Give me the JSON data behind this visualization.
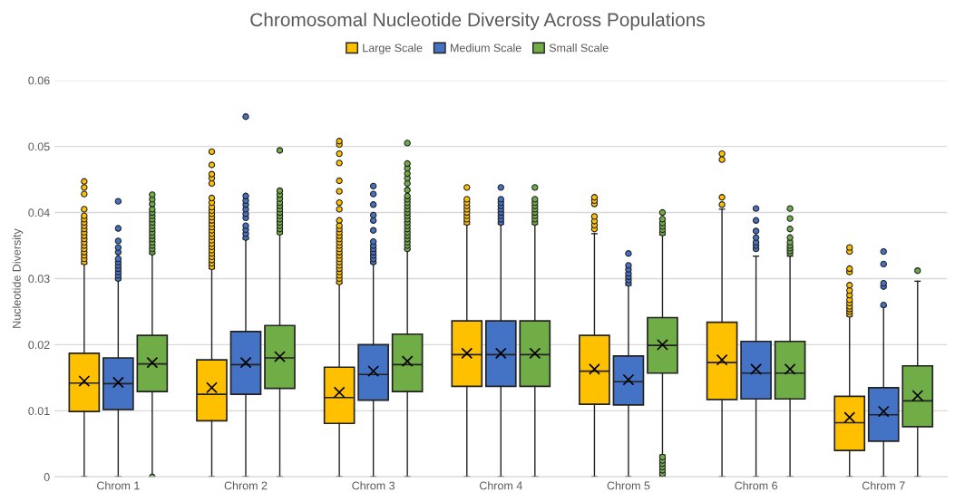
{
  "chart_data": {
    "type": "box",
    "title": "Chromosomal Nucleotide Diversity Across Populations",
    "ylabel": "Nucleotide Diversity",
    "categories": [
      "Chrom 1",
      "Chrom 2",
      "Chrom 3",
      "Chrom 4",
      "Chrom 5",
      "Chrom 6",
      "Chrom 7"
    ],
    "ylim": [
      0,
      0.06
    ],
    "yticks": [
      0,
      0.01,
      0.02,
      0.03,
      0.04,
      0.05,
      0.06
    ],
    "grid": "y",
    "legend": "top",
    "series": [
      {
        "name": "Large Scale",
        "color": "#ffc000",
        "boxes": [
          {
            "low": 0,
            "q1": 0.0099,
            "median": 0.0142,
            "q3": 0.0187,
            "high": 0.0322,
            "mean": 0.0145,
            "outliers": [
              0.0325,
              0.033,
              0.0335,
              0.034,
              0.0345,
              0.035,
              0.0355,
              0.036,
              0.0365,
              0.037,
              0.0375,
              0.038,
              0.0385,
              0.039,
              0.0395,
              0.0405,
              0.0428,
              0.0438,
              0.0447
            ]
          },
          {
            "low": 0,
            "q1": 0.0085,
            "median": 0.0125,
            "q3": 0.0177,
            "high": 0.0315,
            "mean": 0.0135,
            "outliers": [
              0.0318,
              0.0323,
              0.0328,
              0.0333,
              0.0338,
              0.0343,
              0.0348,
              0.0353,
              0.0358,
              0.0363,
              0.0368,
              0.0373,
              0.0378,
              0.0383,
              0.0388,
              0.0393,
              0.0398,
              0.0403,
              0.0408,
              0.0415,
              0.0422,
              0.0444,
              0.0452,
              0.0458,
              0.0472,
              0.0492
            ]
          },
          {
            "low": 0,
            "q1": 0.0081,
            "median": 0.012,
            "q3": 0.0166,
            "high": 0.0293,
            "mean": 0.0128,
            "outliers": [
              0.0295,
              0.03,
              0.0305,
              0.031,
              0.0315,
              0.032,
              0.0325,
              0.033,
              0.0335,
              0.034,
              0.0345,
              0.035,
              0.0355,
              0.036,
              0.0365,
              0.037,
              0.0375,
              0.038,
              0.0388,
              0.0405,
              0.0415,
              0.0432,
              0.0448,
              0.0475,
              0.0489,
              0.0503,
              0.0508
            ]
          },
          {
            "low": 0,
            "q1": 0.0137,
            "median": 0.0185,
            "q3": 0.0236,
            "high": 0.0382,
            "mean": 0.0187,
            "outliers": [
              0.0385,
              0.039,
              0.0395,
              0.04,
              0.0405,
              0.041,
              0.0415,
              0.042,
              0.0438
            ]
          },
          {
            "low": 0,
            "q1": 0.011,
            "median": 0.016,
            "q3": 0.0214,
            "high": 0.0368,
            "mean": 0.0163,
            "outliers": [
              0.0375,
              0.0381,
              0.0387,
              0.0394,
              0.0413,
              0.0418,
              0.0423
            ]
          },
          {
            "low": 0,
            "q1": 0.0117,
            "median": 0.0173,
            "q3": 0.0234,
            "high": 0.0405,
            "mean": 0.0177,
            "outliers": [
              0.0412,
              0.0423,
              0.048,
              0.0489
            ]
          },
          {
            "low": 0,
            "q1": 0.004,
            "median": 0.0082,
            "q3": 0.0122,
            "high": 0.0243,
            "mean": 0.009,
            "outliers": [
              0.0246,
              0.025,
              0.0254,
              0.0258,
              0.0263,
              0.0268,
              0.0275,
              0.0282,
              0.029,
              0.031,
              0.0315,
              0.0341,
              0.0347
            ]
          }
        ]
      },
      {
        "name": "Medium Scale",
        "color": "#4472c4",
        "boxes": [
          {
            "low": 0,
            "q1": 0.0102,
            "median": 0.0141,
            "q3": 0.018,
            "high": 0.0298,
            "mean": 0.0143,
            "outliers": [
              0.03,
              0.0305,
              0.031,
              0.0315,
              0.032,
              0.0325,
              0.033,
              0.034,
              0.0347,
              0.0357,
              0.0376,
              0.0417
            ]
          },
          {
            "low": 0,
            "q1": 0.0125,
            "median": 0.017,
            "q3": 0.022,
            "high": 0.036,
            "mean": 0.0173,
            "outliers": [
              0.0362,
              0.0368,
              0.0374,
              0.038,
              0.0392,
              0.0398,
              0.0405,
              0.0412,
              0.0418,
              0.0425,
              0.0545
            ]
          },
          {
            "low": 0,
            "q1": 0.0116,
            "median": 0.0155,
            "q3": 0.02,
            "high": 0.0323,
            "mean": 0.016,
            "outliers": [
              0.0325,
              0.033,
              0.0335,
              0.034,
              0.0345,
              0.035,
              0.0356,
              0.0373,
              0.0388,
              0.0396,
              0.0412,
              0.0428,
              0.044
            ]
          },
          {
            "low": 0,
            "q1": 0.0137,
            "median": 0.0185,
            "q3": 0.0236,
            "high": 0.0382,
            "mean": 0.0187,
            "outliers": [
              0.0385,
              0.039,
              0.0395,
              0.04,
              0.0405,
              0.041,
              0.0415,
              0.042,
              0.0438
            ]
          },
          {
            "low": 0,
            "q1": 0.0109,
            "median": 0.0144,
            "q3": 0.0183,
            "high": 0.029,
            "mean": 0.0147,
            "outliers": [
              0.0293,
              0.0298,
              0.0303,
              0.0308,
              0.0314,
              0.032,
              0.0338
            ]
          },
          {
            "low": 0,
            "q1": 0.0118,
            "median": 0.0157,
            "q3": 0.0205,
            "high": 0.0334,
            "mean": 0.0163,
            "outliers": [
              0.0345,
              0.035,
              0.0355,
              0.0362,
              0.0372,
              0.0388,
              0.0406
            ]
          },
          {
            "low": 0,
            "q1": 0.0054,
            "median": 0.0094,
            "q3": 0.0135,
            "high": 0.0258,
            "mean": 0.0099,
            "outliers": [
              0.026,
              0.0288,
              0.0293,
              0.0322,
              0.0341
            ]
          }
        ]
      },
      {
        "name": "Small Scale",
        "color": "#70ad47",
        "boxes": [
          {
            "low": 0,
            "q1": 0.0129,
            "median": 0.0171,
            "q3": 0.0214,
            "high": 0.0338,
            "mean": 0.0173,
            "outliers": [
              0,
              0.034,
              0.0345,
              0.035,
              0.0355,
              0.036,
              0.0365,
              0.037,
              0.0375,
              0.038,
              0.0385,
              0.039,
              0.0395,
              0.04,
              0.0405,
              0.0413,
              0.042,
              0.0427
            ]
          },
          {
            "low": 0,
            "q1": 0.0134,
            "median": 0.018,
            "q3": 0.0229,
            "high": 0.0368,
            "mean": 0.0182,
            "outliers": [
              0.037,
              0.0375,
              0.038,
              0.0385,
              0.039,
              0.0395,
              0.04,
              0.0405,
              0.041,
              0.0415,
              0.0421,
              0.0427,
              0.0433,
              0.0494
            ]
          },
          {
            "low": 0,
            "q1": 0.0129,
            "median": 0.017,
            "q3": 0.0216,
            "high": 0.0344,
            "mean": 0.0175,
            "outliers": [
              0.0345,
              0.035,
              0.0355,
              0.036,
              0.0365,
              0.037,
              0.0375,
              0.038,
              0.0385,
              0.039,
              0.0395,
              0.04,
              0.0405,
              0.041,
              0.0415,
              0.042,
              0.0425,
              0.0434,
              0.0444,
              0.0452,
              0.0459,
              0.0467,
              0.0474,
              0.0505
            ]
          },
          {
            "low": 0,
            "q1": 0.0137,
            "median": 0.0185,
            "q3": 0.0236,
            "high": 0.0382,
            "mean": 0.0187,
            "outliers": [
              0.0385,
              0.039,
              0.0395,
              0.04,
              0.0405,
              0.041,
              0.0415,
              0.042,
              0.0438
            ]
          },
          {
            "low": 0.0033,
            "q1": 0.0157,
            "median": 0.0199,
            "q3": 0.0241,
            "high": 0.0366,
            "mean": 0.02,
            "outliers": [
              0,
              0.0005,
              0.001,
              0.0015,
              0.002,
              0.0025,
              0.003,
              0.0369,
              0.0374,
              0.0379,
              0.0384,
              0.039,
              0.04
            ]
          },
          {
            "low": 0,
            "q1": 0.0118,
            "median": 0.0157,
            "q3": 0.0205,
            "high": 0.0334,
            "mean": 0.0163,
            "outliers": [
              0.0338,
              0.0342,
              0.0346,
              0.035,
              0.0355,
              0.0362,
              0.0375,
              0.0391,
              0.0406
            ]
          },
          {
            "low": 0,
            "q1": 0.0076,
            "median": 0.0115,
            "q3": 0.0168,
            "high": 0.0296,
            "mean": 0.0123,
            "outliers": [
              0.0312
            ]
          }
        ]
      }
    ]
  }
}
